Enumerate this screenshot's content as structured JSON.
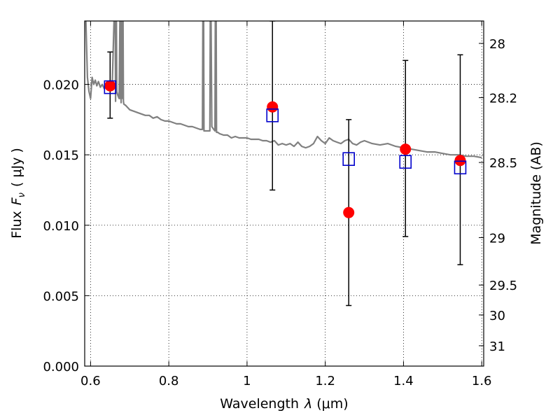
{
  "chart_data": {
    "type": "scatter",
    "xlabel": "Wavelength",
    "xlabel_symbol": "λ",
    "xlabel_unit": "(μm)",
    "ylabel": "Flux",
    "ylabel_symbol": "F",
    "ylabel_subscript": "ν",
    "ylabel_unit": "( μJy )",
    "y2label": "Magnitude (AB)",
    "xlim": [
      0.585,
      1.605
    ],
    "ylim": [
      0.0,
      0.0245
    ],
    "grid": true,
    "grid_style": "dotted",
    "x_ticks": [
      0.6,
      0.8,
      1.0,
      1.2,
      1.4,
      1.6
    ],
    "x_tick_labels": [
      "0.6",
      "0.8",
      "1",
      "1.2",
      "1.4",
      "1.6"
    ],
    "y_ticks": [
      0.0,
      0.005,
      0.01,
      0.015,
      0.02
    ],
    "y_tick_labels": [
      "0.000",
      "0.005",
      "0.010",
      "0.015",
      "0.020"
    ],
    "y2_ticks": [
      28,
      28.2,
      28.5,
      29,
      29.5,
      30,
      31
    ],
    "y2_tick_labels": [
      "28",
      "28.2",
      "28.5",
      "29",
      "29.5",
      "30",
      "31"
    ],
    "colors": {
      "model": "#808080",
      "observed": "#ff0000",
      "synthetic": "#0000cc",
      "errorbar": "#000000"
    },
    "series": [
      {
        "kind": "model_spectrum",
        "x": [
          0.588,
          0.592,
          0.596,
          0.6,
          0.604,
          0.608,
          0.612,
          0.616,
          0.62,
          0.625,
          0.63,
          0.635,
          0.64,
          0.645,
          0.65,
          0.655,
          0.66,
          0.663,
          0.664,
          0.665,
          0.666,
          0.667,
          0.67,
          0.673,
          0.675,
          0.676,
          0.677,
          0.678,
          0.68,
          0.681,
          0.682,
          0.683,
          0.684,
          0.685,
          0.69,
          0.7,
          0.71,
          0.72,
          0.73,
          0.74,
          0.75,
          0.76,
          0.77,
          0.78,
          0.79,
          0.8,
          0.81,
          0.82,
          0.83,
          0.84,
          0.85,
          0.86,
          0.87,
          0.88,
          0.886,
          0.887,
          0.888,
          0.889,
          0.89,
          0.891,
          0.895,
          0.9,
          0.905,
          0.906,
          0.907,
          0.908,
          0.91,
          0.915,
          0.918,
          0.919,
          0.92,
          0.921,
          0.922,
          0.925,
          0.93,
          0.94,
          0.95,
          0.96,
          0.97,
          0.98,
          0.99,
          1.0,
          1.01,
          1.02,
          1.03,
          1.04,
          1.05,
          1.06,
          1.07,
          1.08,
          1.09,
          1.1,
          1.11,
          1.12,
          1.13,
          1.14,
          1.15,
          1.16,
          1.17,
          1.18,
          1.19,
          1.2,
          1.21,
          1.22,
          1.23,
          1.24,
          1.25,
          1.26,
          1.27,
          1.28,
          1.29,
          1.3,
          1.32,
          1.34,
          1.36,
          1.38,
          1.4,
          1.42,
          1.44,
          1.46,
          1.48,
          1.5,
          1.52,
          1.54,
          1.56,
          1.58,
          1.6
        ],
        "y": [
          0.0245,
          0.0205,
          0.0195,
          0.019,
          0.0205,
          0.02,
          0.0203,
          0.0199,
          0.0202,
          0.0198,
          0.02,
          0.0197,
          0.0199,
          0.0196,
          0.0198,
          0.0196,
          0.0245,
          0.0245,
          0.0188,
          0.0245,
          0.0245,
          0.0195,
          0.0192,
          0.019,
          0.0245,
          0.019,
          0.0245,
          0.0187,
          0.0245,
          0.0245,
          0.019,
          0.0245,
          0.0188,
          0.0186,
          0.0185,
          0.0182,
          0.0181,
          0.018,
          0.0179,
          0.0178,
          0.0178,
          0.0176,
          0.0177,
          0.0175,
          0.0174,
          0.0174,
          0.0173,
          0.0172,
          0.0172,
          0.0171,
          0.017,
          0.017,
          0.0169,
          0.0168,
          0.0168,
          0.0245,
          0.0245,
          0.0245,
          0.0167,
          0.0167,
          0.0167,
          0.0167,
          0.0167,
          0.0245,
          0.0245,
          0.0245,
          0.017,
          0.0168,
          0.0167,
          0.0245,
          0.0245,
          0.0245,
          0.0166,
          0.0166,
          0.0165,
          0.0164,
          0.0164,
          0.0162,
          0.0163,
          0.0162,
          0.0162,
          0.0162,
          0.0161,
          0.0161,
          0.0161,
          0.016,
          0.016,
          0.0159,
          0.016,
          0.0157,
          0.0158,
          0.0157,
          0.0158,
          0.0156,
          0.0159,
          0.0156,
          0.0155,
          0.0156,
          0.0158,
          0.0163,
          0.016,
          0.0158,
          0.0162,
          0.016,
          0.0159,
          0.0158,
          0.016,
          0.0161,
          0.0158,
          0.0157,
          0.0159,
          0.016,
          0.0158,
          0.0157,
          0.0158,
          0.0156,
          0.0155,
          0.0154,
          0.0153,
          0.0152,
          0.0152,
          0.0151,
          0.015,
          0.015,
          0.0149,
          0.0149,
          0.0148
        ]
      },
      {
        "kind": "observed",
        "x": [
          0.65,
          1.065,
          1.26,
          1.405,
          1.545
        ],
        "y": [
          0.0199,
          0.0184,
          0.0109,
          0.0154,
          0.0146
        ],
        "yerr_low": [
          0.0176,
          0.0125,
          0.0043,
          0.0092,
          0.0072
        ],
        "yerr_high": [
          0.0223,
          0.0245,
          0.0175,
          0.0217,
          0.0221
        ]
      },
      {
        "kind": "synthetic",
        "x": [
          0.65,
          1.065,
          1.26,
          1.405,
          1.545
        ],
        "y": [
          0.0198,
          0.0178,
          0.0147,
          0.0145,
          0.0141
        ]
      }
    ]
  }
}
